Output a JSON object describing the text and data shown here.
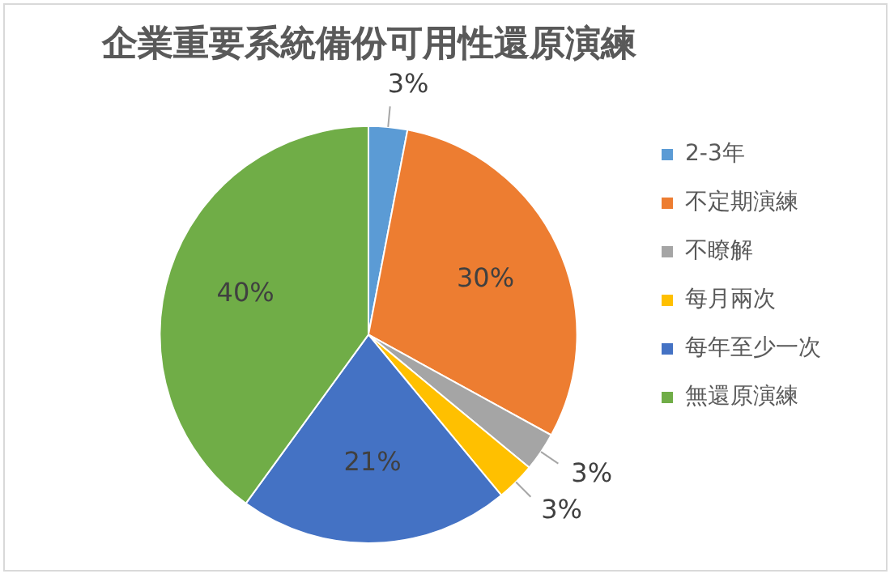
{
  "chart_data": {
    "type": "pie",
    "title": "企業重要系統備份可用性還原演練",
    "categories": [
      "2-3年",
      "不定期演練",
      "不瞭解",
      "每月兩次",
      "每年至少一次",
      "無還原演練"
    ],
    "values": [
      3,
      30,
      3,
      3,
      21,
      40
    ],
    "colors": [
      "#5b9bd5",
      "#ed7d31",
      "#a5a5a5",
      "#ffc000",
      "#4472c4",
      "#70ad47"
    ],
    "value_labels": [
      "3%",
      "30%",
      "3%",
      "3%",
      "21%",
      "40%"
    ],
    "legend": "right"
  }
}
